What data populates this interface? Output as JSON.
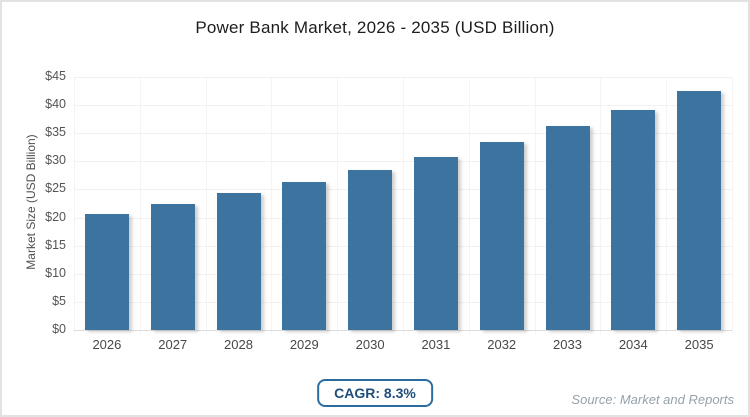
{
  "chart_data": {
    "type": "bar",
    "title": "Power Bank Market, 2026 - 2035 (USD Billion)",
    "categories": [
      "2026",
      "2027",
      "2028",
      "2029",
      "2030",
      "2031",
      "2032",
      "2033",
      "2034",
      "2035"
    ],
    "values": [
      20.7,
      22.4,
      24.3,
      26.3,
      28.5,
      30.8,
      33.4,
      36.2,
      39.2,
      42.5
    ],
    "xlabel": "",
    "ylabel": "Market Size (USD Billion)",
    "ylim": [
      0,
      45
    ],
    "ytick_step": 5,
    "ytick_prefix": "$",
    "grid": true,
    "legend_position": "none",
    "bar_color": "#3d749f",
    "annotations": [
      "CAGR: 8.3%"
    ]
  },
  "footer": {
    "cagr_badge": "CAGR: 8.3%",
    "source": "Source: Market and Reports"
  },
  "colors": {
    "bar": "#3d749f",
    "grid_horizontal": "#f1f1f1",
    "grid_vertical": "#f4f4f4",
    "baseline": "#dcdcdc",
    "title_text": "#1d1d1d",
    "axis_text": "#4f4f4f",
    "tick_text": "#555555",
    "badge_border": "#2d6c9e",
    "badge_text": "#1f4e79",
    "source_text": "#95a2ac",
    "page_border": "#e2e2e2"
  }
}
